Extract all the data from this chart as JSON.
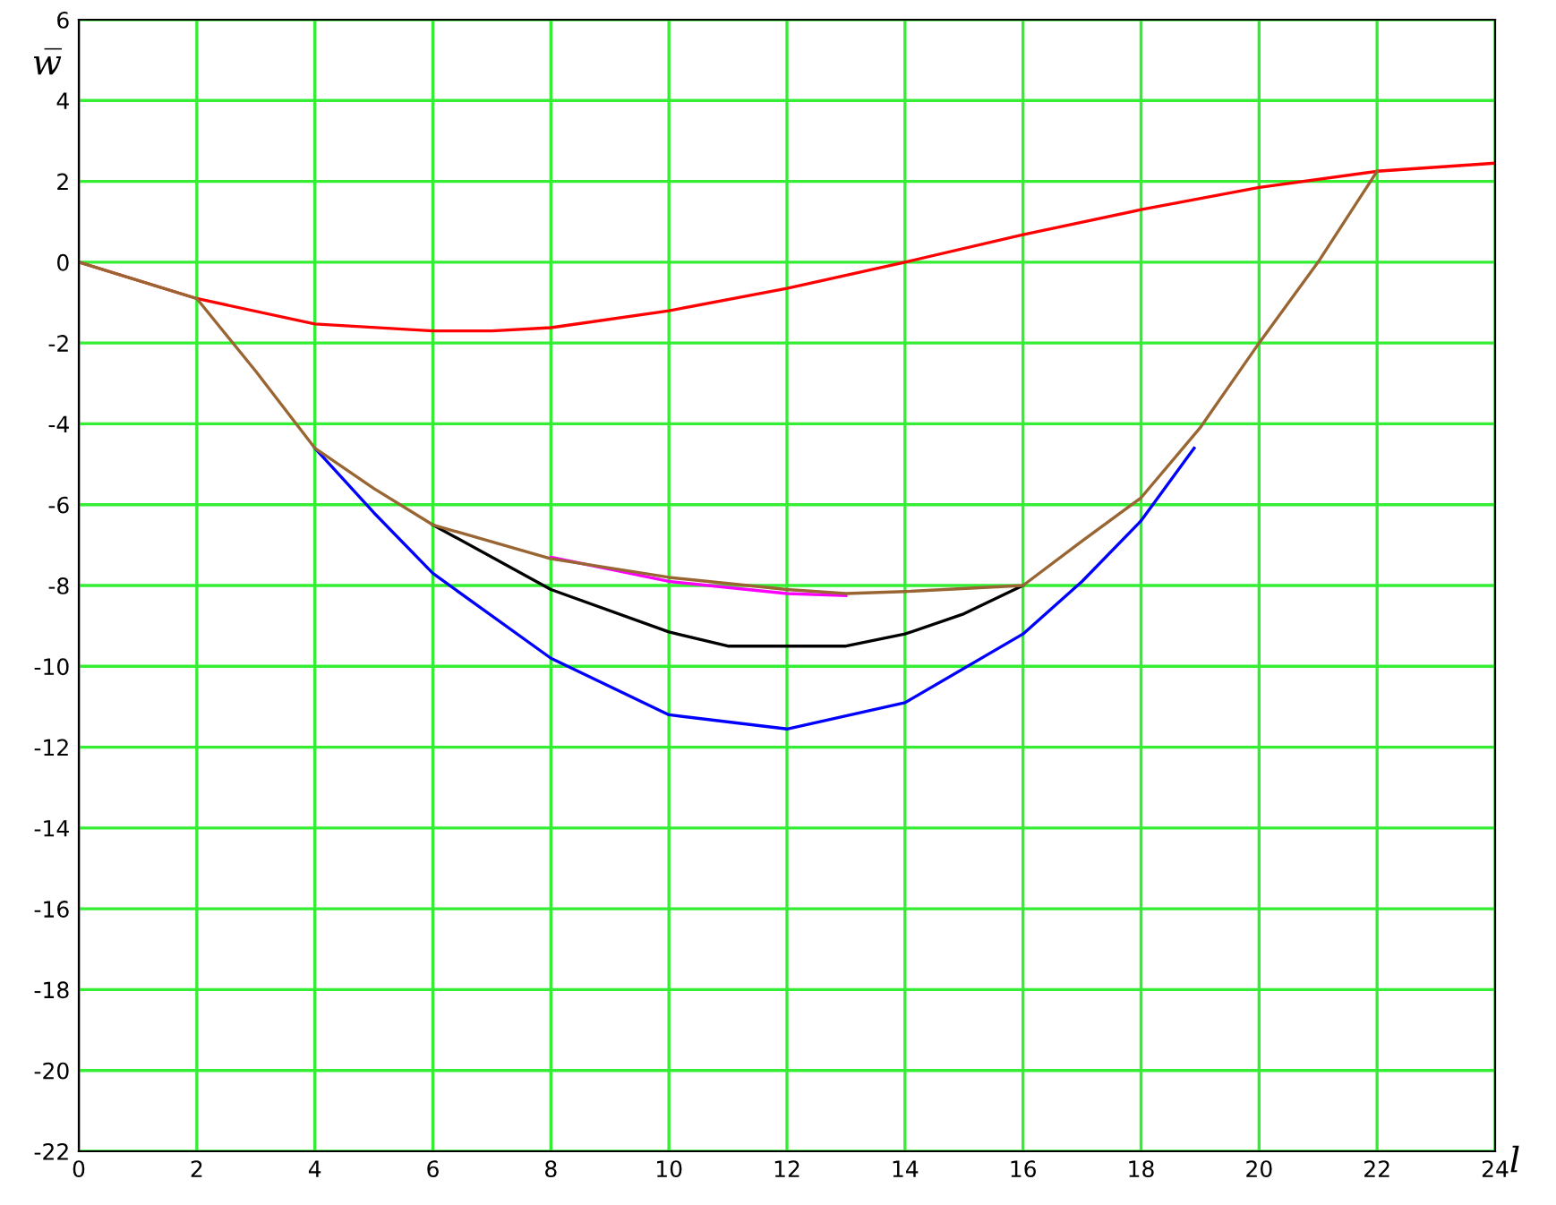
{
  "chart_data": {
    "type": "line",
    "xlabel": "l",
    "ylabel": "w̅",
    "xlim": [
      0,
      24
    ],
    "ylim": [
      -22,
      6
    ],
    "xticks": [
      0,
      2,
      4,
      6,
      8,
      10,
      12,
      14,
      16,
      18,
      20,
      22,
      24
    ],
    "yticks": [
      -22,
      -20,
      -18,
      -16,
      -14,
      -12,
      -10,
      -8,
      -6,
      -4,
      -2,
      0,
      2,
      4,
      6
    ],
    "grid": true,
    "line_style": "solid",
    "marker": "none",
    "series": [
      {
        "color": "#ff0000",
        "x": [
          0,
          2,
          4,
          6,
          7,
          8,
          10,
          12,
          14,
          16,
          18,
          20,
          22,
          24
        ],
        "values": [
          0,
          -0.9,
          -1.53,
          -1.7,
          -1.7,
          -1.62,
          -1.2,
          -0.65,
          0,
          0.68,
          1.3,
          1.85,
          2.25,
          2.45
        ]
      },
      {
        "color": "#0000ff",
        "x": [
          4,
          5,
          6,
          8,
          10,
          12,
          14,
          16,
          17,
          18,
          18.9
        ],
        "values": [
          -4.6,
          -6.2,
          -7.7,
          -9.8,
          -11.2,
          -11.55,
          -10.9,
          -9.2,
          -7.9,
          -6.4,
          -4.6
        ]
      },
      {
        "color": "#000000",
        "x": [
          6,
          8,
          10,
          11,
          12,
          13,
          14,
          15,
          16
        ],
        "values": [
          -6.5,
          -8.1,
          -9.15,
          -9.5,
          -9.5,
          -9.5,
          -9.2,
          -8.7,
          -8.0
        ]
      },
      {
        "color": "#ff00ff",
        "x": [
          8,
          9,
          10,
          11,
          12,
          13
        ],
        "values": [
          -7.3,
          -7.6,
          -7.9,
          -8.05,
          -8.2,
          -8.25
        ]
      },
      {
        "color": "#996633",
        "x": [
          0,
          2,
          3,
          4,
          5,
          6,
          8,
          10,
          12,
          13,
          14,
          16,
          17,
          18,
          19,
          20,
          21,
          22
        ],
        "values": [
          0,
          -0.9,
          -2.7,
          -4.6,
          -5.6,
          -6.5,
          -7.34,
          -7.8,
          -8.1,
          -8.2,
          -8.15,
          -8.0,
          -6.9,
          -5.83,
          -4.1,
          -2.0,
          0,
          2.25
        ]
      }
    ]
  }
}
